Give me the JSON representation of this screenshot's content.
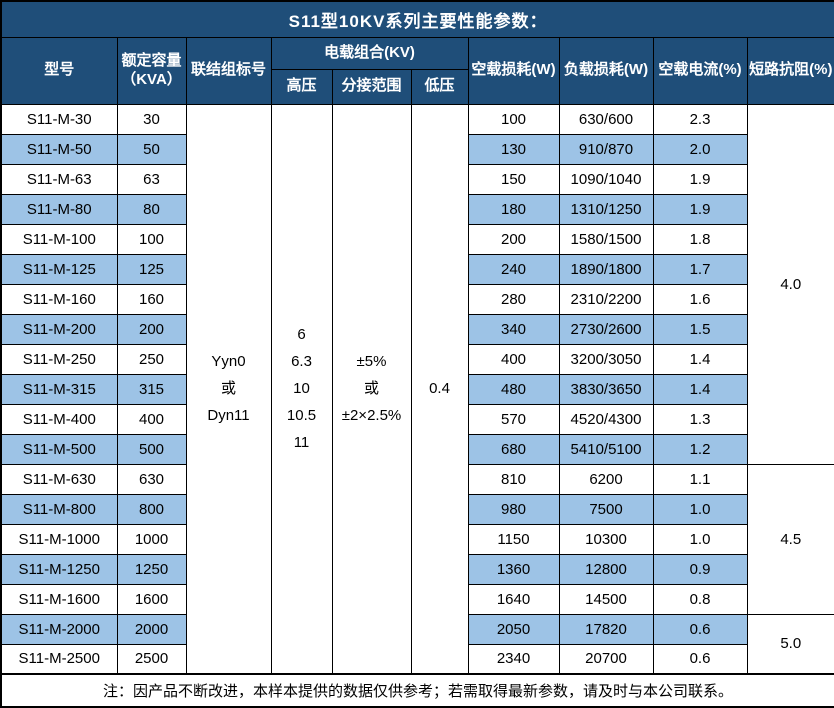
{
  "title": "S11型10KV系列主要性能参数：",
  "colors": {
    "header_bg": "#1F4E79",
    "stripe_bg": "#9DC3E6",
    "border": "#000000",
    "header_text": "#FFFFFF"
  },
  "header": {
    "model": "型号",
    "capacity_line1": "额定容量",
    "capacity_line2": "（KVA）",
    "connection": "联结组标号",
    "voltage_group": "电载组合(KV)",
    "hv": "高压",
    "tap_range": "分接范围",
    "lv": "低压",
    "no_load_loss": "空载损耗(W)",
    "load_loss": "负载损耗(W)",
    "no_load_current": "空载电流(%)",
    "short_circuit": "短路抗阻(%)"
  },
  "merged": {
    "connection_lines": [
      "Yyn0",
      "或",
      "Dyn11"
    ],
    "hv_lines": [
      "6",
      "6.3",
      "10",
      "10.5",
      "11"
    ],
    "tap_lines": [
      "±5%",
      "或",
      "±2×2.5%"
    ],
    "lv": "0.4"
  },
  "sections": [
    {
      "impedance": "4.0",
      "rows": [
        [
          "S11-M-30",
          "30",
          "100",
          "630/600",
          "2.3"
        ],
        [
          "S11-M-50",
          "50",
          "130",
          "910/870",
          "2.0"
        ],
        [
          "S11-M-63",
          "63",
          "150",
          "1090/1040",
          "1.9"
        ],
        [
          "S11-M-80",
          "80",
          "180",
          "1310/1250",
          "1.9"
        ],
        [
          "S11-M-100",
          "100",
          "200",
          "1580/1500",
          "1.8"
        ],
        [
          "S11-M-125",
          "125",
          "240",
          "1890/1800",
          "1.7"
        ],
        [
          "S11-M-160",
          "160",
          "280",
          "2310/2200",
          "1.6"
        ],
        [
          "S11-M-200",
          "200",
          "340",
          "2730/2600",
          "1.5"
        ],
        [
          "S11-M-250",
          "250",
          "400",
          "3200/3050",
          "1.4"
        ],
        [
          "S11-M-315",
          "315",
          "480",
          "3830/3650",
          "1.4"
        ],
        [
          "S11-M-400",
          "400",
          "570",
          "4520/4300",
          "1.3"
        ],
        [
          "S11-M-500",
          "500",
          "680",
          "5410/5100",
          "1.2"
        ]
      ]
    },
    {
      "impedance": "4.5",
      "rows": [
        [
          "S11-M-630",
          "630",
          "810",
          "6200",
          "1.1"
        ],
        [
          "S11-M-800",
          "800",
          "980",
          "7500",
          "1.0"
        ],
        [
          "S11-M-1000",
          "1000",
          "1150",
          "10300",
          "1.0"
        ],
        [
          "S11-M-1250",
          "1250",
          "1360",
          "12800",
          "0.9"
        ],
        [
          "S11-M-1600",
          "1600",
          "1640",
          "14500",
          "0.8"
        ]
      ]
    },
    {
      "impedance": "5.0",
      "rows": [
        [
          "S11-M-2000",
          "2000",
          "2050",
          "17820",
          "0.6"
        ],
        [
          "S11-M-2500",
          "2500",
          "2340",
          "20700",
          "0.6"
        ]
      ]
    }
  ],
  "note": "注：因产品不断改进，本样本提供的数据仅供参考；若需取得最新参数，请及时与本公司联系。"
}
